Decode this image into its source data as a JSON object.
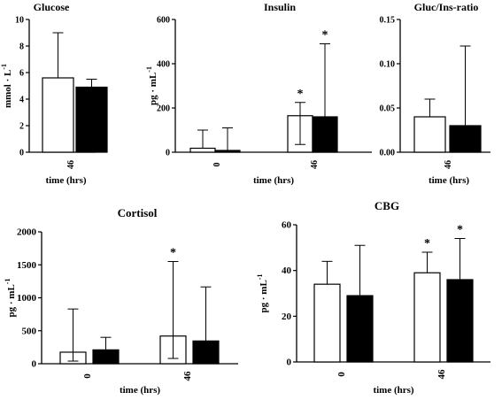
{
  "chart_data": [
    {
      "id": "glucose",
      "type": "bar",
      "title": "Glucose",
      "ylabel": "mmol · L",
      "ylabel_sup": "-1",
      "xlabel": "time (hrs)",
      "categories": [
        "46"
      ],
      "yticks": [
        "0",
        "2",
        "4",
        "6",
        "8",
        "10"
      ],
      "ylim": [
        0,
        10
      ],
      "series": [
        {
          "fill": "#ffffff",
          "values": [
            5.6
          ],
          "error_upper": [
            9.0
          ],
          "error_lower": [
            null
          ]
        },
        {
          "fill": "#000000",
          "values": [
            4.9
          ],
          "error_upper": [
            5.5
          ],
          "error_lower": [
            null
          ]
        }
      ],
      "significance": [
        [
          false,
          false
        ]
      ]
    },
    {
      "id": "insulin",
      "type": "bar",
      "title": "Insulin",
      "ylabel": "pg · mL",
      "ylabel_sup": "-1",
      "xlabel": "time (hrs)",
      "categories": [
        "0",
        "46"
      ],
      "yticks": [
        "0",
        "200",
        "400",
        "600"
      ],
      "ylim": [
        0,
        600
      ],
      "series": [
        {
          "fill": "#ffffff",
          "values": [
            18,
            165
          ],
          "error_upper": [
            100,
            225
          ],
          "error_lower": [
            null,
            35
          ]
        },
        {
          "fill": "#000000",
          "values": [
            8,
            160
          ],
          "error_upper": [
            110,
            490
          ],
          "error_lower": [
            null,
            null
          ]
        }
      ],
      "significance": [
        [
          false,
          false
        ],
        [
          true,
          true
        ]
      ]
    },
    {
      "id": "gluc-ins-ratio",
      "type": "bar",
      "title": "Gluc/Ins-ratio",
      "ylabel": "",
      "ylabel_sup": "",
      "xlabel": "time (hrs)",
      "categories": [
        "46"
      ],
      "yticks": [
        "0.00",
        "0.05",
        "0.10",
        "0.15"
      ],
      "ylim": [
        0,
        0.15
      ],
      "series": [
        {
          "fill": "#ffffff",
          "values": [
            0.04
          ],
          "error_upper": [
            0.06
          ],
          "error_lower": [
            null
          ]
        },
        {
          "fill": "#000000",
          "values": [
            0.03
          ],
          "error_upper": [
            0.12
          ],
          "error_lower": [
            null
          ]
        }
      ],
      "significance": [
        [
          false,
          false
        ]
      ]
    },
    {
      "id": "cortisol",
      "type": "bar",
      "title": "Cortisol",
      "ylabel": "pg · mL",
      "ylabel_sup": "-1",
      "xlabel": "time (hrs)",
      "categories": [
        "0",
        "46"
      ],
      "yticks": [
        "0",
        "500",
        "1000",
        "1500",
        "2000"
      ],
      "ylim": [
        0,
        2000
      ],
      "series": [
        {
          "fill": "#ffffff",
          "values": [
            175,
            420
          ],
          "error_upper": [
            830,
            1550
          ],
          "error_lower": [
            40,
            80
          ]
        },
        {
          "fill": "#000000",
          "values": [
            210,
            345
          ],
          "error_upper": [
            400,
            1165
          ],
          "error_lower": [
            null,
            null
          ]
        }
      ],
      "significance": [
        [
          false,
          false
        ],
        [
          true,
          false
        ]
      ]
    },
    {
      "id": "cbg",
      "type": "bar",
      "title": "CBG",
      "ylabel": "pg · mL",
      "ylabel_sup": "-1",
      "xlabel": "time (hrs)",
      "categories": [
        "0",
        "46"
      ],
      "yticks": [
        "0",
        "20",
        "40",
        "60"
      ],
      "ylim": [
        0,
        60
      ],
      "series": [
        {
          "fill": "#ffffff",
          "values": [
            34,
            39
          ],
          "error_upper": [
            44,
            48
          ],
          "error_lower": [
            null,
            null
          ]
        },
        {
          "fill": "#000000",
          "values": [
            29,
            36
          ],
          "error_upper": [
            51,
            54
          ],
          "error_lower": [
            null,
            null
          ]
        }
      ],
      "significance": [
        [
          false,
          false
        ],
        [
          true,
          true
        ]
      ]
    }
  ],
  "significance_marker": "*"
}
